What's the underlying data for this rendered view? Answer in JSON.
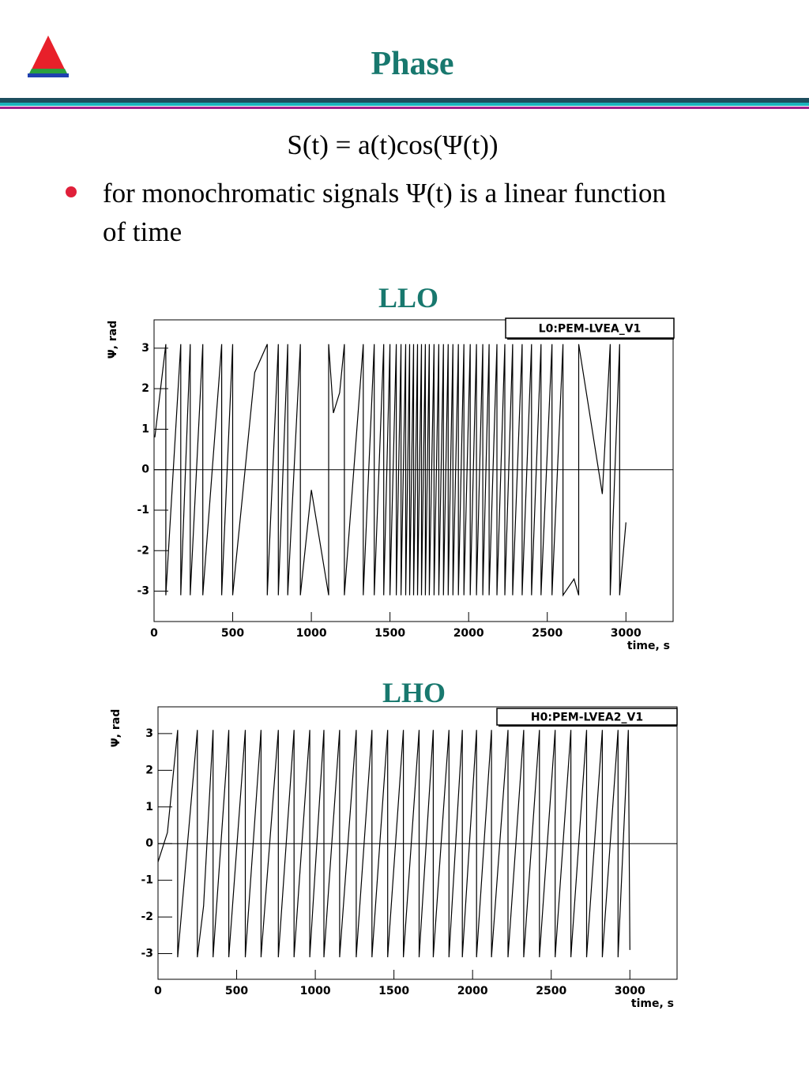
{
  "header": {
    "title": "Phase"
  },
  "formula": "S(t) = a(t)cos(Ψ(t))",
  "bullets": [
    "for monochromatic signals Ψ(t) is a linear function of time"
  ],
  "chart_data": [
    {
      "type": "line",
      "title": "LLO",
      "x_label": "time, s",
      "y_label": "Ψ, rad",
      "xlim": [
        0,
        3300
      ],
      "ylim": [
        -3.75,
        3.7
      ],
      "xticks": [
        0,
        500,
        1000,
        1500,
        2000,
        2500,
        3000
      ],
      "yticks": [
        -3,
        -2,
        -1,
        0,
        1,
        2,
        3
      ],
      "legend": "top-right",
      "series": [
        {
          "name": "L0:PEM-LVEA_V1",
          "color": "#000000",
          "x": [
            5,
            75,
            75,
            170,
            170,
            230,
            230,
            310,
            310,
            430,
            430,
            500,
            500,
            640,
            720,
            720,
            790,
            790,
            850,
            850,
            930,
            930,
            1000,
            1110,
            1110,
            1140,
            1180,
            1210,
            1210,
            1330,
            1330,
            1400,
            1400,
            1460,
            1460,
            1500,
            1500,
            1540,
            1540,
            1570,
            1570,
            1600,
            1600,
            1625,
            1625,
            1650,
            1650,
            1675,
            1675,
            1700,
            1700,
            1725,
            1725,
            1750,
            1750,
            1780,
            1780,
            1810,
            1810,
            1840,
            1840,
            1870,
            1870,
            1900,
            1900,
            1935,
            1935,
            1970,
            1970,
            2010,
            2010,
            2050,
            2050,
            2090,
            2090,
            2130,
            2130,
            2180,
            2180,
            2230,
            2230,
            2280,
            2280,
            2340,
            2340,
            2400,
            2400,
            2460,
            2460,
            2530,
            2530,
            2600,
            2600,
            2670,
            2700,
            2700,
            2850,
            2900,
            2900,
            2960,
            2960,
            3000
          ],
          "values": [
            0.8,
            3.1,
            -3.1,
            3.1,
            -3.1,
            3.1,
            -3.1,
            3.1,
            -3.1,
            3.1,
            -3.1,
            3.1,
            -3.1,
            2.4,
            3.1,
            -3.1,
            3.1,
            -3.1,
            3.1,
            -3.1,
            3.1,
            -3.1,
            -0.5,
            -3.1,
            3.1,
            1.4,
            1.9,
            3.1,
            -3.1,
            3.1,
            -3.1,
            3.1,
            -3.1,
            3.1,
            -3.1,
            3.1,
            -3.1,
            3.1,
            -3.1,
            3.1,
            -3.1,
            3.1,
            -3.1,
            3.1,
            -3.1,
            3.1,
            -3.1,
            3.1,
            -3.1,
            3.1,
            -3.1,
            3.1,
            -3.1,
            3.1,
            -3.1,
            3.1,
            -3.1,
            3.1,
            -3.1,
            3.1,
            -3.1,
            3.1,
            -3.1,
            3.1,
            -3.1,
            3.1,
            -3.1,
            3.1,
            -3.1,
            3.1,
            -3.1,
            3.1,
            -3.1,
            3.1,
            -3.1,
            3.1,
            -3.1,
            3.1,
            -3.1,
            3.1,
            -3.1,
            3.1,
            -3.1,
            3.1,
            -3.1,
            3.1,
            -3.1,
            3.1,
            -3.1,
            3.1,
            -3.1,
            3.1,
            -3.1,
            -2.7,
            -3.1,
            3.1,
            -0.6,
            3.1,
            -3.1,
            3.1,
            -3.1,
            -1.3
          ]
        }
      ]
    },
    {
      "type": "line",
      "title": "LHO",
      "x_label": "time, s",
      "y_label": "Ψ, rad",
      "xlim": [
        0,
        3300
      ],
      "ylim": [
        -3.7,
        3.73
      ],
      "xticks": [
        0,
        500,
        1000,
        1500,
        2000,
        2500,
        3000
      ],
      "yticks": [
        -3,
        -2,
        -1,
        0,
        1,
        2,
        3
      ],
      "legend": "top-right",
      "series": [
        {
          "name": "H0:PEM-LVEA2_V1",
          "color": "#000000",
          "x": [
            0,
            60,
            125,
            125,
            250,
            250,
            290,
            350,
            350,
            450,
            450,
            555,
            555,
            655,
            655,
            765,
            765,
            865,
            865,
            965,
            965,
            1055,
            1055,
            1155,
            1155,
            1260,
            1260,
            1360,
            1360,
            1460,
            1460,
            1560,
            1560,
            1660,
            1660,
            1750,
            1750,
            1850,
            1850,
            1935,
            1935,
            2025,
            2025,
            2120,
            2120,
            2225,
            2225,
            2325,
            2325,
            2425,
            2425,
            2525,
            2525,
            2625,
            2625,
            2725,
            2725,
            2825,
            2825,
            2925,
            2925,
            2990,
            3000
          ],
          "values": [
            -0.5,
            0.3,
            3.1,
            -3.1,
            3.1,
            -3.1,
            -1.7,
            3.1,
            -3.1,
            3.1,
            -3.1,
            3.1,
            -3.1,
            3.1,
            -3.1,
            3.1,
            -3.1,
            3.1,
            -3.1,
            3.1,
            -3.1,
            3.1,
            -3.1,
            3.1,
            -3.1,
            3.1,
            -3.1,
            3.1,
            -3.1,
            3.1,
            -3.1,
            3.1,
            -3.1,
            3.1,
            -3.1,
            3.1,
            -3.1,
            3.1,
            -3.1,
            3.1,
            -3.1,
            3.1,
            -3.1,
            3.1,
            -3.1,
            3.1,
            -3.1,
            3.1,
            -3.1,
            3.1,
            -3.1,
            3.1,
            -3.1,
            3.1,
            -3.1,
            3.1,
            -3.1,
            3.1,
            -3.1,
            3.1,
            -3.1,
            3.1,
            -2.9
          ]
        }
      ]
    }
  ]
}
